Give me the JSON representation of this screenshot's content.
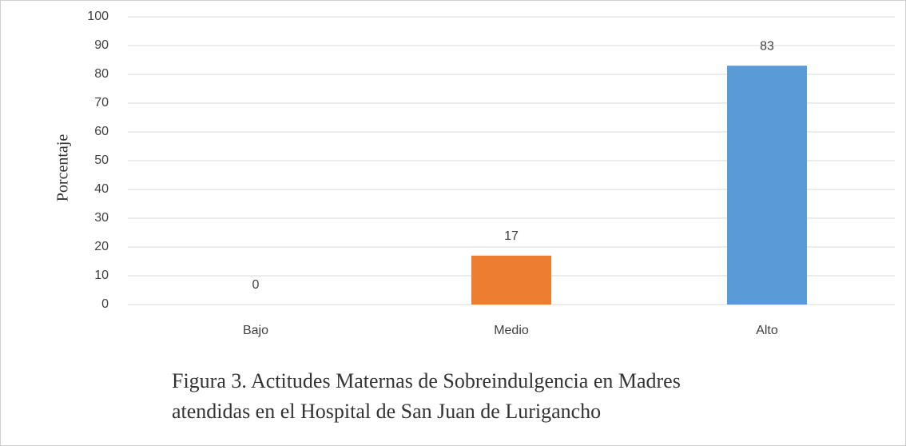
{
  "chart_data": {
    "type": "bar",
    "y_label": "Porcentaje",
    "categories": [
      "Bajo",
      "Medio",
      "Alto"
    ],
    "values": [
      0,
      17,
      83
    ],
    "colors": [
      "#5b9bd5",
      "#ed7d31",
      "#5b9bd5"
    ],
    "ylim": [
      0,
      100
    ],
    "yticks": [
      0,
      10,
      20,
      30,
      40,
      50,
      60,
      70,
      80,
      90,
      100
    ],
    "grid": true,
    "caption": [
      "Figura 3. Actitudes Maternas de Sobreindulgencia  en Madres",
      "atendidas en el Hospital de San Juan de Lurigancho"
    ]
  }
}
